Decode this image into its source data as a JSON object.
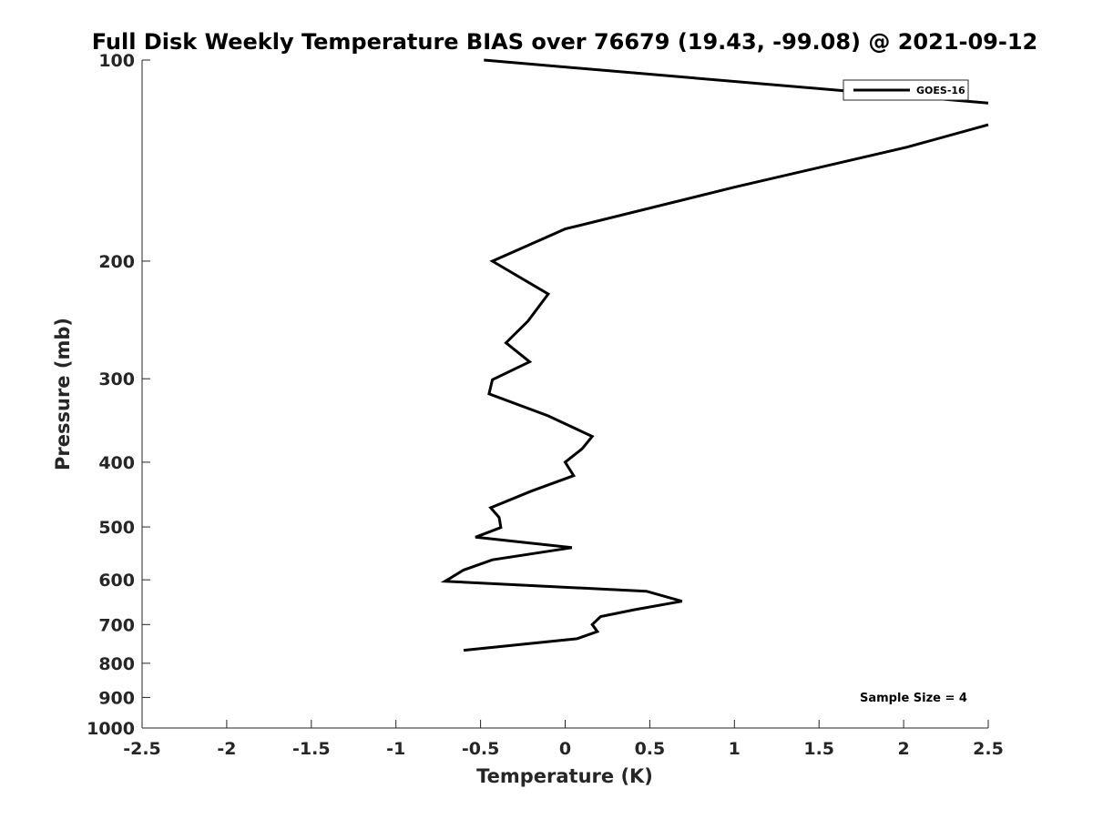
{
  "chart_data": {
    "type": "line",
    "title": "Full Disk Weekly Temperature BIAS over 76679 (19.43, -99.08) @ 2021-09-12",
    "xlabel": "Temperature (K)",
    "ylabel": "Pressure (mb)",
    "xlim": [
      -2.5,
      2.5
    ],
    "ylim": [
      100,
      1000
    ],
    "yscale": "log",
    "y_reversed": true,
    "x_ticks": [
      -2.5,
      -2,
      -1.5,
      -1,
      -0.5,
      0,
      0.5,
      1,
      1.5,
      2,
      2.5
    ],
    "x_tick_labels": [
      "-2.5",
      "-2",
      "-1.5",
      "-1",
      "-0.5",
      "0",
      "0.5",
      "1",
      "1.5",
      "2",
      "2.5"
    ],
    "y_ticks": [
      100,
      200,
      300,
      400,
      500,
      600,
      700,
      800,
      900,
      1000
    ],
    "y_tick_labels": [
      "100",
      "200",
      "300",
      "400",
      "500",
      "600",
      "700",
      "800",
      "900",
      "1000"
    ],
    "legend": {
      "placement": "top-right",
      "entries": [
        "GOES-16"
      ]
    },
    "annotation": "Sample Size = 4",
    "grid": false,
    "series": [
      {
        "name": "GOES-16",
        "color": "#000000",
        "segments": [
          [
            {
              "x": -0.48,
              "p": 100
            },
            {
              "x": 2.5,
              "p": 116
            }
          ],
          [
            {
              "x": 2.5,
              "p": 125
            },
            {
              "x": 2.02,
              "p": 135
            },
            {
              "x": 1.0,
              "p": 155
            },
            {
              "x": 0.0,
              "p": 179
            },
            {
              "x": -0.43,
              "p": 200
            },
            {
              "x": -0.1,
              "p": 224
            },
            {
              "x": -0.22,
              "p": 246
            },
            {
              "x": -0.35,
              "p": 265
            },
            {
              "x": -0.21,
              "p": 283
            },
            {
              "x": -0.43,
              "p": 301
            },
            {
              "x": -0.45,
              "p": 316
            },
            {
              "x": -0.1,
              "p": 341
            },
            {
              "x": 0.16,
              "p": 366
            },
            {
              "x": 0.1,
              "p": 382
            },
            {
              "x": 0.0,
              "p": 400
            },
            {
              "x": 0.05,
              "p": 419
            },
            {
              "x": -0.2,
              "p": 442
            },
            {
              "x": -0.44,
              "p": 468
            },
            {
              "x": -0.39,
              "p": 484
            },
            {
              "x": -0.38,
              "p": 501
            },
            {
              "x": -0.53,
              "p": 518
            },
            {
              "x": 0.04,
              "p": 537
            },
            {
              "x": -0.43,
              "p": 560
            },
            {
              "x": -0.6,
              "p": 580
            },
            {
              "x": -0.71,
              "p": 603
            },
            {
              "x": 0.48,
              "p": 624
            },
            {
              "x": 0.69,
              "p": 646
            },
            {
              "x": 0.41,
              "p": 665
            },
            {
              "x": 0.21,
              "p": 681
            },
            {
              "x": 0.16,
              "p": 700
            },
            {
              "x": 0.19,
              "p": 717
            },
            {
              "x": 0.07,
              "p": 735
            },
            {
              "x": -0.6,
              "p": 765
            }
          ]
        ]
      }
    ]
  }
}
